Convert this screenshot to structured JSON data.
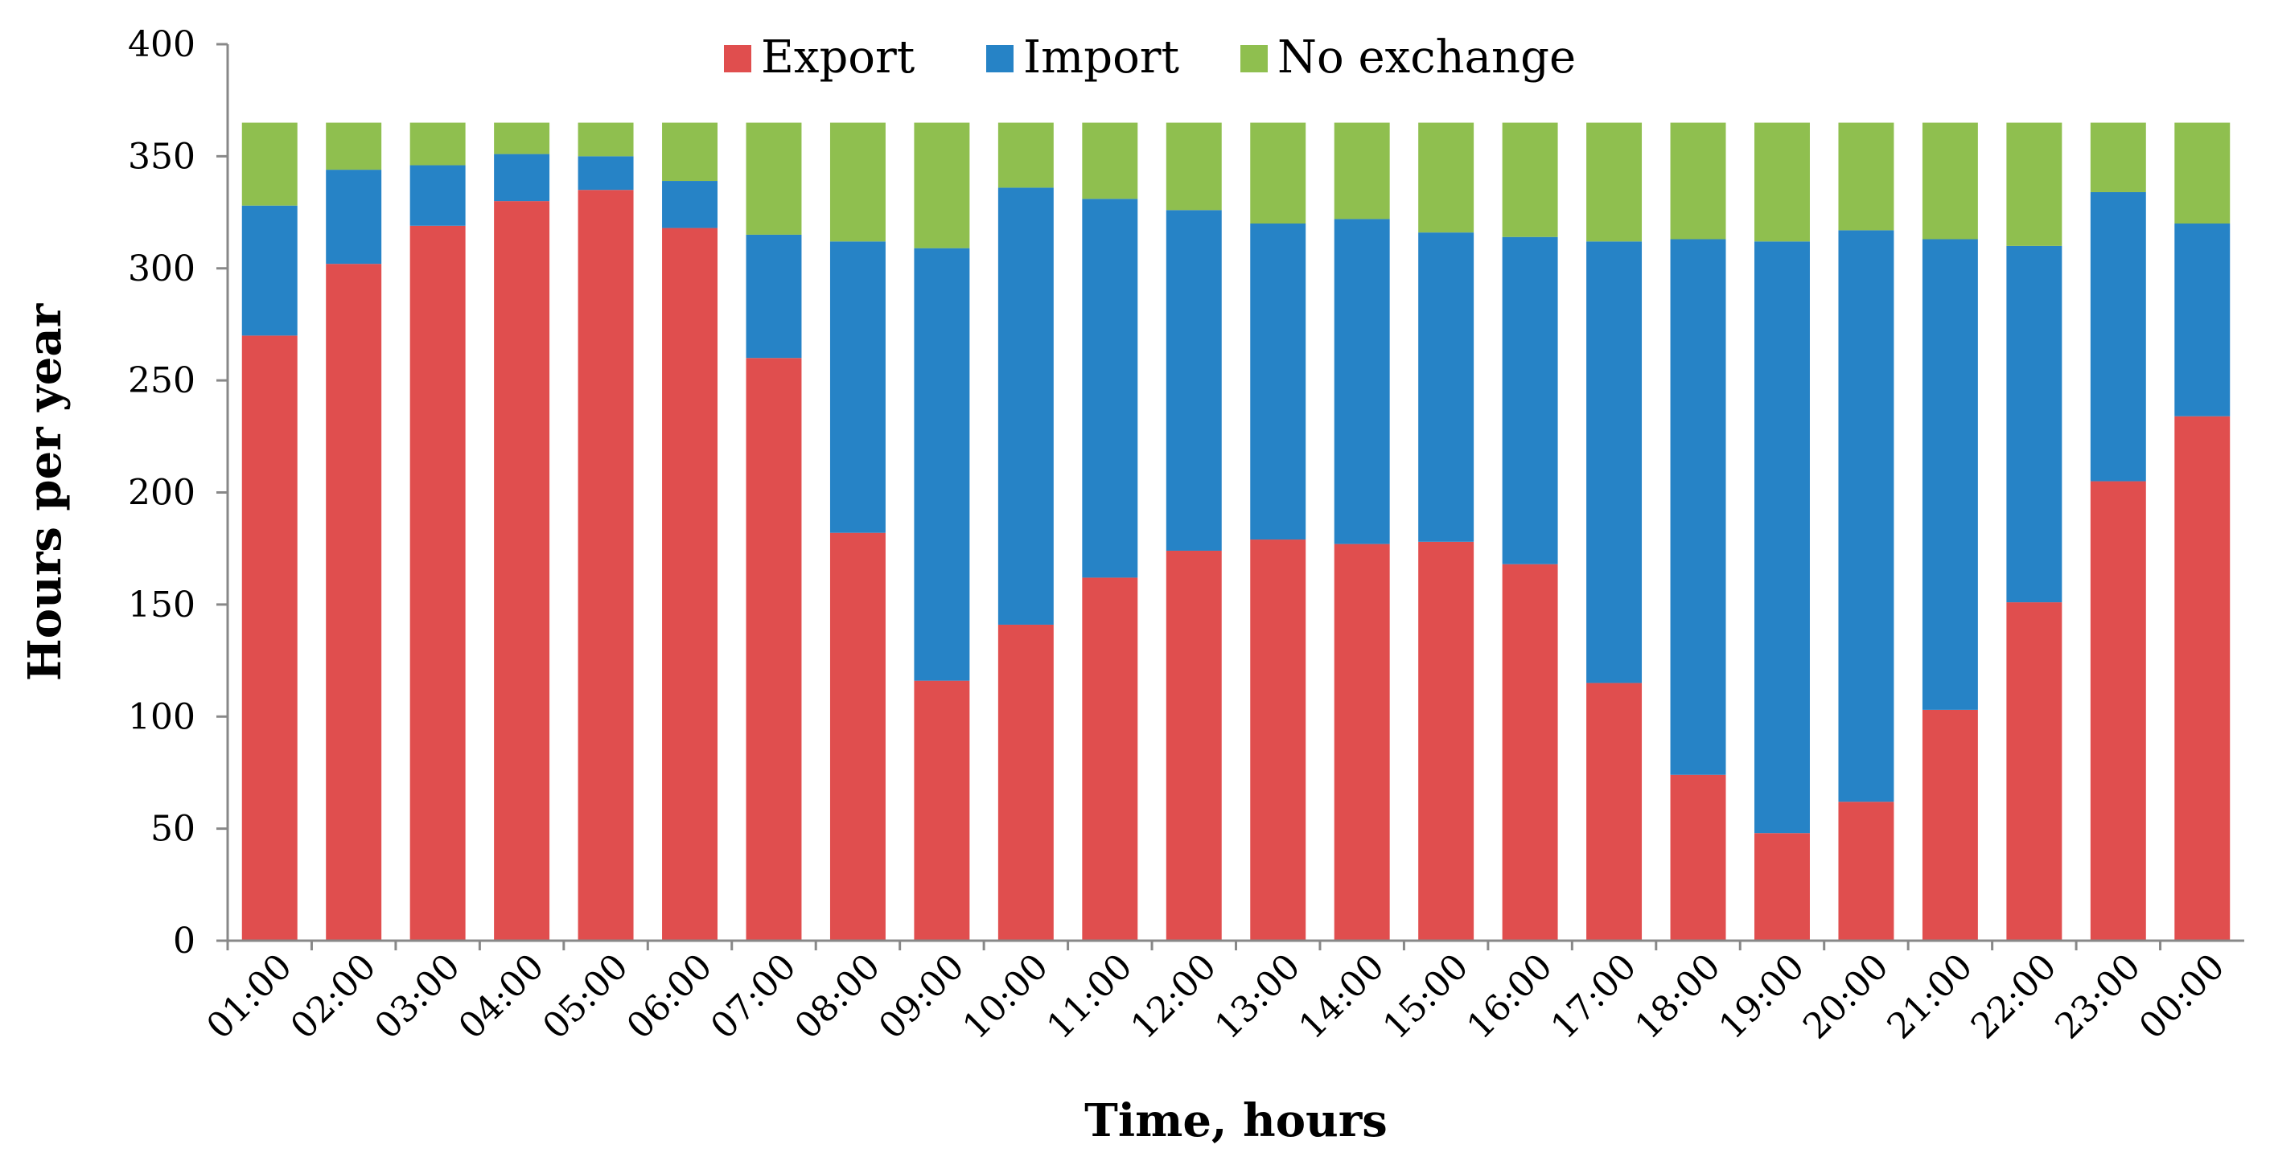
{
  "chart_data": {
    "type": "bar",
    "stacked": true,
    "title": "",
    "xlabel": "Time,  hours",
    "ylabel": "Hours per year",
    "ylim": [
      0,
      400
    ],
    "yticks": [
      0,
      50,
      100,
      150,
      200,
      250,
      300,
      350,
      400
    ],
    "grid": false,
    "legend_position": "top-center",
    "categories": [
      "01:00",
      "02:00",
      "03:00",
      "04:00",
      "05:00",
      "06:00",
      "07:00",
      "08:00",
      "09:00",
      "10:00",
      "11:00",
      "12:00",
      "13:00",
      "14:00",
      "15:00",
      "16:00",
      "17:00",
      "18:00",
      "19:00",
      "20:00",
      "21:00",
      "22:00",
      "23:00",
      "00:00"
    ],
    "series": [
      {
        "name": "Export",
        "color": "#E04E4E",
        "values": [
          270,
          302,
          319,
          330,
          335,
          318,
          260,
          182,
          116,
          141,
          162,
          174,
          179,
          177,
          178,
          168,
          115,
          74,
          48,
          62,
          103,
          151,
          205,
          234
        ]
      },
      {
        "name": "Import",
        "color": "#2683C6",
        "values": [
          58,
          42,
          27,
          21,
          15,
          21,
          55,
          130,
          193,
          195,
          169,
          152,
          141,
          145,
          138,
          146,
          197,
          239,
          264,
          255,
          210,
          159,
          129,
          86
        ]
      },
      {
        "name": "No exchange",
        "color": "#8FBF4F",
        "values": [
          37,
          21,
          19,
          14,
          15,
          26,
          50,
          53,
          56,
          29,
          34,
          39,
          45,
          43,
          49,
          51,
          53,
          52,
          53,
          48,
          52,
          55,
          31,
          45
        ]
      }
    ]
  }
}
